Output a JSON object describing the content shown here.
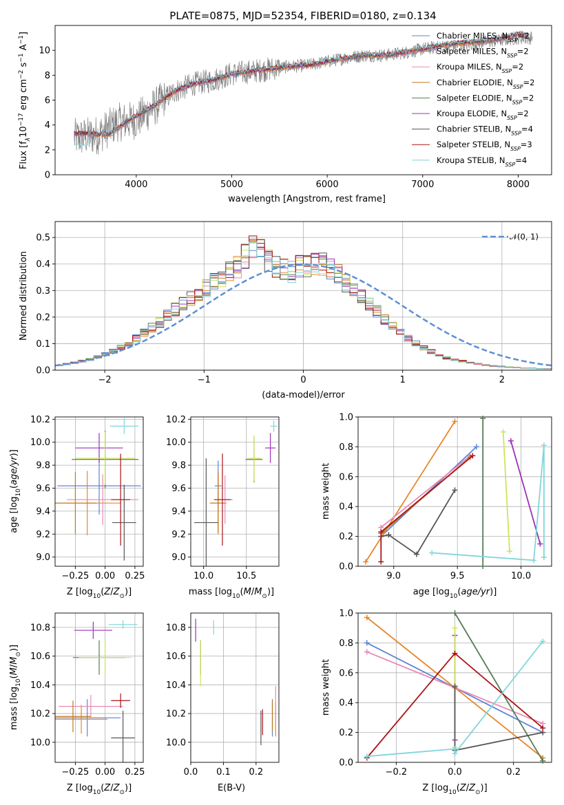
{
  "figure": {
    "title": "PLATE=0875, MJD=52354, FIBERID=0180, z=0.134"
  },
  "colors": {
    "observed": "#808080",
    "series": [
      "#5b84d4",
      "#e8862a",
      "#e889b5",
      "#c07a1e",
      "#567b57",
      "#9b30b8",
      "#cde55a",
      "#555555",
      "#aa1317",
      "#7fd6da"
    ],
    "normal_curve": "#5b8fd4"
  },
  "chart_data": [
    {
      "id": "spectrum",
      "type": "line",
      "title": "PLATE=0875, MJD=52354, FIBERID=0180, z=0.134",
      "xlabel": "wavelength [Angstrom, rest frame]",
      "ylabel": "Flux [fλ10⁻¹⁷ erg cm⁻² s⁻¹ A⁻¹]",
      "xlim": [
        3150,
        8350
      ],
      "ylim": [
        0,
        12
      ],
      "xticks": [
        4000,
        5000,
        6000,
        7000,
        8000
      ],
      "yticks": [
        0,
        2,
        4,
        6,
        8,
        10
      ],
      "grid": false,
      "legend_position": "top-right",
      "observed_anchors": [
        [
          3400,
          3.0
        ],
        [
          3600,
          3.2
        ],
        [
          3800,
          4.2
        ],
        [
          4000,
          4.4
        ],
        [
          4200,
          5.5
        ],
        [
          4400,
          6.7
        ],
        [
          4600,
          7.3
        ],
        [
          4800,
          7.6
        ],
        [
          5000,
          8.1
        ],
        [
          5200,
          8.3
        ],
        [
          5400,
          8.5
        ],
        [
          5600,
          8.7
        ],
        [
          5800,
          8.8
        ],
        [
          6000,
          9.1
        ],
        [
          6200,
          9.4
        ],
        [
          6400,
          9.6
        ],
        [
          6600,
          9.6
        ],
        [
          6800,
          9.8
        ],
        [
          7000,
          10.1
        ],
        [
          7200,
          10.3
        ],
        [
          7400,
          10.4
        ],
        [
          7600,
          10.6
        ],
        [
          7800,
          10.8
        ],
        [
          8000,
          11.0
        ],
        [
          8150,
          11.0
        ]
      ],
      "model_anchors": [
        [
          3350,
          3.3
        ],
        [
          3500,
          3.3
        ],
        [
          3700,
          3.2
        ],
        [
          3800,
          3.7
        ],
        [
          3900,
          4.3
        ],
        [
          4000,
          4.7
        ],
        [
          4200,
          5.6
        ],
        [
          4400,
          6.7
        ],
        [
          4600,
          7.3
        ],
        [
          4800,
          7.6
        ],
        [
          5000,
          8.1
        ],
        [
          5200,
          8.3
        ],
        [
          5400,
          8.5
        ],
        [
          5600,
          8.7
        ],
        [
          5800,
          8.8
        ],
        [
          6000,
          9.1
        ],
        [
          6200,
          9.4
        ],
        [
          6400,
          9.6
        ],
        [
          6600,
          9.6
        ],
        [
          6800,
          9.8
        ],
        [
          7000,
          10.1
        ],
        [
          7200,
          10.4
        ],
        [
          7400,
          10.6
        ],
        [
          7600,
          10.7
        ],
        [
          7800,
          10.9
        ],
        [
          8000,
          11.3
        ],
        [
          8100,
          11.2
        ]
      ],
      "series": [
        {
          "name": "Chabrier MILES, N_SSP=2",
          "imf": "Chabrier",
          "library": "MILES",
          "nssp": "2"
        },
        {
          "name": "Salpeter MILES, N_SSP=2",
          "imf": "Salpeter",
          "library": "MILES",
          "nssp": "2"
        },
        {
          "name": "Kroupa MILES, N_SSP=2",
          "imf": "Kroupa",
          "library": "MILES",
          "nssp": "2"
        },
        {
          "name": "Chabrier ELODIE, N_SSP=2",
          "imf": "Chabrier",
          "library": "ELODIE",
          "nssp": "2"
        },
        {
          "name": "Salpeter ELODIE, N_SSP=2",
          "imf": "Salpeter",
          "library": "ELODIE",
          "nssp": "2"
        },
        {
          "name": "Kroupa ELODIE, N_SSP=2",
          "imf": "Kroupa",
          "library": "ELODIE",
          "nssp": "2"
        },
        {
          "name": "Chabrier STELIB, N_SSP=4",
          "imf": "Chabrier",
          "library": "STELIB",
          "nssp": "4"
        },
        {
          "name": "Salpeter STELIB, N_SSP=3",
          "imf": "Salpeter",
          "library": "STELIB",
          "nssp": "3"
        },
        {
          "name": "Kroupa STELIB, N_SSP=4",
          "imf": "Kroupa",
          "library": "STELIB",
          "nssp": "4"
        }
      ]
    },
    {
      "id": "residuals",
      "type": "histogram",
      "xlabel": "(data-model)/error",
      "ylabel": "Normed distribution",
      "xlim": [
        -2.5,
        2.5
      ],
      "ylim": [
        0,
        0.56
      ],
      "xticks": [
        -2,
        -1,
        0,
        1,
        2
      ],
      "yticks": [
        0.0,
        0.1,
        0.2,
        0.3,
        0.4,
        0.5
      ],
      "grid": true,
      "legend_position": "top-right",
      "legend_label": "𝒩(0, 1)",
      "bin_width": 0.1,
      "bins_center_values": [
        0.018,
        0.023,
        0.028,
        0.034,
        0.041,
        0.05,
        0.06,
        0.072,
        0.086,
        0.1,
        0.12,
        0.14,
        0.16,
        0.18,
        0.21,
        0.23,
        0.25,
        0.27,
        0.29,
        0.31,
        0.33,
        0.35,
        0.37,
        0.39,
        0.43,
        0.46,
        0.45,
        0.41,
        0.39,
        0.38,
        0.37,
        0.39,
        0.39,
        0.4,
        0.4,
        0.38,
        0.36,
        0.33,
        0.31,
        0.28,
        0.25,
        0.22,
        0.19,
        0.165,
        0.14,
        0.12,
        0.1,
        0.085,
        0.07,
        0.058,
        0.046,
        0.04,
        0.034,
        0.028,
        0.023,
        0.019,
        0.016,
        0.014,
        0.012,
        0.01,
        0.008,
        0.007,
        0.006,
        0.005
      ]
    },
    {
      "id": "z-age",
      "type": "errorbar",
      "xlabel": "Z [log10(Z/Z⊙)]",
      "ylabel": "age  [log10(age/yr)]",
      "xlim": [
        -0.42,
        0.32
      ],
      "ylim": [
        8.92,
        10.22
      ],
      "xticks": [
        -0.25,
        0.0,
        0.25
      ],
      "yticks": [
        9.0,
        9.2,
        9.4,
        9.6,
        9.8,
        10.0,
        10.2
      ],
      "grid": true,
      "points": [
        {
          "x": -0.05,
          "y": 9.62,
          "xerr": 0.35,
          "yerr": 0.25
        },
        {
          "x": -0.15,
          "y": 9.47,
          "xerr": 0.28,
          "yerr": 0.28
        },
        {
          "x": -0.02,
          "y": 9.5,
          "xerr": 0.3,
          "yerr": 0.22
        },
        {
          "x": -0.25,
          "y": 9.47,
          "xerr": 0.18,
          "yerr": 0.27
        },
        {
          "x": 0.0,
          "y": 9.85,
          "xerr": 0.28,
          "yerr": 0.25
        },
        {
          "x": -0.05,
          "y": 9.95,
          "xerr": 0.2,
          "yerr": 0.13
        },
        {
          "x": 0.0,
          "y": 9.86,
          "xerr": 0.25,
          "yerr": 0.23
        },
        {
          "x": 0.16,
          "y": 9.3,
          "xerr": 0.1,
          "yerr": 0.33
        },
        {
          "x": 0.13,
          "y": 9.5,
          "xerr": 0.08,
          "yerr": 0.4
        },
        {
          "x": 0.16,
          "y": 10.14,
          "xerr": 0.12,
          "yerr": 0.07
        }
      ]
    },
    {
      "id": "mass-age",
      "type": "errorbar",
      "xlabel": "mass [log10(M/M⊙)]",
      "ylabel": "",
      "xlim": [
        9.85,
        10.88
      ],
      "ylim": [
        8.92,
        10.22
      ],
      "xticks": [
        10.0,
        10.5
      ],
      "yticks": [
        9.0,
        9.2,
        9.4,
        9.6,
        9.8,
        10.0,
        10.2
      ],
      "grid": true,
      "points": [
        {
          "x": 10.17,
          "y": 9.62,
          "xerr": 0.04,
          "yerr": 0.22
        },
        {
          "x": 10.17,
          "y": 9.47,
          "xerr": 0.1,
          "yerr": 0.25
        },
        {
          "x": 10.25,
          "y": 9.5,
          "xerr": 0.09,
          "yerr": 0.21
        },
        {
          "x": 10.17,
          "y": 9.47,
          "xerr": 0.08,
          "yerr": 0.27
        },
        {
          "x": 10.59,
          "y": 9.85,
          "xerr": 0.1,
          "yerr": 0.2
        },
        {
          "x": 10.78,
          "y": 9.95,
          "xerr": 0.06,
          "yerr": 0.13
        },
        {
          "x": 10.59,
          "y": 9.86,
          "xerr": 0.08,
          "yerr": 0.2
        },
        {
          "x": 10.03,
          "y": 9.3,
          "xerr": 0.14,
          "yerr": 0.56
        },
        {
          "x": 10.22,
          "y": 9.5,
          "xerr": 0.1,
          "yerr": 0.4
        },
        {
          "x": 10.82,
          "y": 10.14,
          "xerr": 0.04,
          "yerr": 0.05
        }
      ]
    },
    {
      "id": "age-weight",
      "type": "line",
      "xlabel": "age  [log10(age/yr)]",
      "ylabel": "mass weight",
      "xlim": [
        8.72,
        10.24
      ],
      "ylim": [
        0,
        1
      ],
      "xticks": [
        9.0,
        9.5,
        10.0
      ],
      "yticks": [
        0.0,
        0.2,
        0.4,
        0.6,
        0.8,
        1.0
      ],
      "grid": true,
      "series": [
        {
          "points": [
            [
              8.9,
              0.2
            ],
            [
              9.65,
              0.8
            ]
          ]
        },
        {
          "points": [
            [
              8.78,
              0.03
            ],
            [
              9.48,
              0.97
            ]
          ]
        },
        {
          "points": [
            [
              8.9,
              0.26
            ],
            [
              9.6,
              0.74
            ]
          ]
        },
        {
          "points": [
            [
              8.9,
              0.22
            ],
            [
              9.6,
              0.73
            ]
          ]
        },
        {
          "points": [
            [
              9.7,
              0.0
            ],
            [
              9.7,
              0.99
            ]
          ]
        },
        {
          "points": [
            [
              9.92,
              0.84
            ],
            [
              10.15,
              0.15
            ]
          ]
        },
        {
          "points": [
            [
              9.86,
              0.9
            ],
            [
              9.91,
              0.1
            ]
          ]
        },
        {
          "points": [
            [
              8.9,
              0.2
            ],
            [
              8.96,
              0.21
            ],
            [
              9.18,
              0.08
            ],
            [
              9.48,
              0.51
            ]
          ]
        },
        {
          "points": [
            [
              8.9,
              0.03
            ],
            [
              8.9,
              0.23
            ],
            [
              9.62,
              0.74
            ]
          ]
        },
        {
          "points": [
            [
              9.3,
              0.09
            ],
            [
              10.1,
              0.04
            ],
            [
              10.18,
              0.81
            ],
            [
              10.18,
              0.06
            ]
          ]
        }
      ]
    },
    {
      "id": "z-mass",
      "type": "errorbar",
      "xlabel": "Z [log10(Z/Z⊙)]",
      "ylabel": "mass [log10(M/M⊙)]",
      "xlim": [
        -0.42,
        0.32
      ],
      "ylim": [
        9.86,
        10.9
      ],
      "xticks": [
        -0.25,
        0.0,
        0.25
      ],
      "yticks": [
        10.0,
        10.2,
        10.4,
        10.6,
        10.8
      ],
      "grid": true,
      "points": [
        {
          "x": -0.15,
          "y": 10.17,
          "xerr": 0.28,
          "yerr": 0.13
        },
        {
          "x": -0.2,
          "y": 10.16,
          "xerr": 0.22,
          "yerr": 0.1
        },
        {
          "x": -0.12,
          "y": 10.25,
          "xerr": 0.27,
          "yerr": 0.08
        },
        {
          "x": -0.27,
          "y": 10.18,
          "xerr": 0.15,
          "yerr": 0.11
        },
        {
          "x": -0.05,
          "y": 10.59,
          "xerr": 0.22,
          "yerr": 0.12
        },
        {
          "x": -0.1,
          "y": 10.78,
          "xerr": 0.16,
          "yerr": 0.06
        },
        {
          "x": 0.0,
          "y": 10.59,
          "xerr": 0.22,
          "yerr": 0.13
        },
        {
          "x": 0.15,
          "y": 10.03,
          "xerr": 0.1,
          "yerr": 0.19
        },
        {
          "x": 0.13,
          "y": 10.29,
          "xerr": 0.08,
          "yerr": 0.05
        },
        {
          "x": 0.15,
          "y": 10.82,
          "xerr": 0.12,
          "yerr": 0.03
        }
      ]
    },
    {
      "id": "ebv-mass",
      "type": "errorbar",
      "xlabel": "E(B-V)",
      "ylabel": "",
      "xlim": [
        0.0,
        0.27
      ],
      "ylim": [
        9.86,
        10.9
      ],
      "xticks": [
        0.0,
        0.1,
        0.2
      ],
      "yticks": [
        10.0,
        10.2,
        10.4,
        10.6,
        10.8
      ],
      "grid": true,
      "points": [
        {
          "x": 0.25,
          "y": 10.17,
          "xerr": 0.0,
          "yerr": 0.13
        },
        {
          "x": 0.26,
          "y": 10.16,
          "xerr": 0.0,
          "yerr": 0.12
        },
        {
          "x": 0.26,
          "y": 10.25,
          "xerr": 0.0,
          "yerr": 0.14
        },
        {
          "x": 0.25,
          "y": 10.18,
          "xerr": 0.0,
          "yerr": 0.11
        },
        {
          "x": 0.03,
          "y": 10.59,
          "xerr": 0.0,
          "yerr": 0.12
        },
        {
          "x": 0.015,
          "y": 10.78,
          "xerr": 0.0,
          "yerr": 0.08
        },
        {
          "x": 0.03,
          "y": 10.55,
          "xerr": 0.0,
          "yerr": 0.16
        },
        {
          "x": 0.215,
          "y": 10.1,
          "xerr": 0.0,
          "yerr": 0.12
        },
        {
          "x": 0.22,
          "y": 10.14,
          "xerr": 0.0,
          "yerr": 0.09
        },
        {
          "x": 0.07,
          "y": 10.8,
          "xerr": 0.0,
          "yerr": 0.05
        }
      ]
    },
    {
      "id": "z-weight",
      "type": "line",
      "xlabel": "Z [log10(Z/Z⊙)]",
      "ylabel": "mass weight",
      "xlim": [
        -0.33,
        0.33
      ],
      "ylim": [
        0,
        1
      ],
      "xticks": [
        -0.2,
        0.0,
        0.2
      ],
      "yticks": [
        0.0,
        0.2,
        0.4,
        0.6,
        0.8,
        1.0
      ],
      "grid": true,
      "series": [
        {
          "points": [
            [
              -0.3,
              0.8
            ],
            [
              0.3,
              0.2
            ]
          ]
        },
        {
          "points": [
            [
              -0.3,
              0.97
            ],
            [
              0.3,
              0.03
            ]
          ]
        },
        {
          "points": [
            [
              -0.3,
              0.74
            ],
            [
              0.3,
              0.26
            ]
          ]
        },
        {
          "points": [
            [
              0.0,
              0.5
            ],
            [
              0.0,
              0.5
            ]
          ]
        },
        {
          "points": [
            [
              0.0,
              1.0
            ],
            [
              0.3,
              0.01
            ]
          ]
        },
        {
          "points": [
            [
              0.0,
              0.85
            ],
            [
              0.0,
              0.15
            ]
          ]
        },
        {
          "points": [
            [
              0.0,
              0.9
            ],
            [
              0.0,
              0.1
            ]
          ]
        },
        {
          "points": [
            [
              0.0,
              0.51
            ],
            [
              0.0,
              0.08
            ],
            [
              0.3,
              0.2
            ]
          ]
        },
        {
          "points": [
            [
              -0.3,
              0.03
            ],
            [
              0.0,
              0.73
            ],
            [
              0.3,
              0.23
            ]
          ]
        },
        {
          "points": [
            [
              -0.3,
              0.04
            ],
            [
              0.0,
              0.09
            ],
            [
              0.0,
              0.06
            ],
            [
              0.3,
              0.81
            ]
          ]
        }
      ]
    }
  ]
}
